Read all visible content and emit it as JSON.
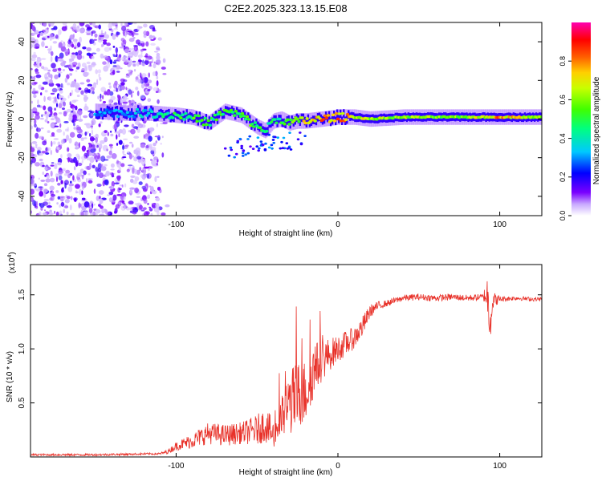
{
  "figure_title": "C2E2.2025.323.13.15.E08",
  "chart_data": [
    {
      "type": "heatmap",
      "title": "C2E2.2025.323.13.15.E08",
      "xlabel": "Height of straight line (km)",
      "ylabel": "Frequency (Hz)",
      "xlim": [
        -190,
        126
      ],
      "ylim": [
        -50,
        50
      ],
      "x_ticks": [
        -100,
        0,
        100
      ],
      "y_ticks": [
        -40,
        -20,
        0,
        20,
        40
      ],
      "colorbar": {
        "label": "Normalized spectral amplitude",
        "range": [
          0,
          1
        ],
        "ticks": [
          0.0,
          0.2,
          0.4,
          0.6,
          0.8
        ],
        "tick_labels": [
          "0.0",
          "0.2",
          "0.4",
          "0.6",
          "0.8"
        ],
        "colors": [
          "#ffffff",
          "#7a00ff",
          "#0000ff",
          "#00d0ff",
          "#00ff60",
          "#a0ff00",
          "#ffff00",
          "#ff7000",
          "#ff0000",
          "#ff00a0"
        ]
      },
      "signal_track": {
        "height_km": [
          -150,
          -130,
          -115,
          -100,
          -90,
          -80,
          -70,
          -60,
          -50,
          -45,
          -40,
          -35,
          -30,
          -25,
          -20,
          -10,
          0,
          10,
          20,
          40,
          60,
          80,
          100,
          126
        ],
        "frequency_hz": [
          4,
          3,
          3,
          2,
          1,
          -2,
          4,
          2,
          -4,
          -6,
          -1,
          0,
          -2,
          -1,
          -1,
          0,
          1,
          1,
          0,
          1,
          1,
          1,
          1,
          1
        ],
        "amplitude": [
          0.35,
          0.35,
          0.45,
          0.55,
          0.6,
          0.55,
          0.6,
          0.6,
          0.6,
          0.55,
          0.5,
          0.55,
          0.6,
          0.7,
          0.85,
          0.9,
          0.9,
          0.8,
          0.75,
          0.7,
          0.7,
          0.7,
          0.9,
          0.7
        ]
      },
      "noise_region_km": [
        -190,
        -105
      ]
    },
    {
      "type": "line",
      "xlabel": "Height of straight line (km)",
      "ylabel": "SNR (10 * v/v)",
      "y_scale_label": "(x10",
      "y_scale_exp": "4",
      "y_scale_close": ")",
      "xlim": [
        -190,
        126
      ],
      "ylim": [
        0,
        1.78
      ],
      "x_ticks": [
        -100,
        0,
        100
      ],
      "y_ticks": [
        0.5,
        1.0,
        1.5
      ],
      "y_tick_labels": [
        "0.5",
        "1.0",
        "1.5"
      ],
      "series": [
        {
          "name": "SNR",
          "color": "#e8322a",
          "x": [
            -190,
            -150,
            -110,
            -105,
            -100,
            -90,
            -80,
            -70,
            -60,
            -50,
            -45,
            -40,
            -35,
            -30,
            -25,
            -20,
            -15,
            -10,
            -5,
            0,
            5,
            10,
            15,
            20,
            25,
            30,
            40,
            50,
            60,
            70,
            80,
            90,
            92,
            94,
            96,
            100,
            110,
            120,
            126
          ],
          "values": [
            0.02,
            0.02,
            0.03,
            0.05,
            0.1,
            0.15,
            0.22,
            0.2,
            0.22,
            0.25,
            0.3,
            0.2,
            0.35,
            0.5,
            0.55,
            0.6,
            0.8,
            0.9,
            0.95,
            1.0,
            1.05,
            1.1,
            1.2,
            1.35,
            1.4,
            1.42,
            1.47,
            1.48,
            1.47,
            1.48,
            1.47,
            1.48,
            1.52,
            1.3,
            1.45,
            1.46,
            1.47,
            1.46,
            1.46
          ],
          "noise": [
            0.01,
            0.01,
            0.01,
            0.02,
            0.04,
            0.07,
            0.1,
            0.1,
            0.1,
            0.14,
            0.16,
            0.15,
            0.2,
            0.3,
            0.35,
            0.3,
            0.25,
            0.2,
            0.15,
            0.12,
            0.12,
            0.1,
            0.1,
            0.06,
            0.04,
            0.03,
            0.03,
            0.03,
            0.03,
            0.03,
            0.03,
            0.03,
            0.2,
            0.25,
            0.08,
            0.03,
            0.02,
            0.02,
            0.02
          ]
        }
      ]
    }
  ]
}
